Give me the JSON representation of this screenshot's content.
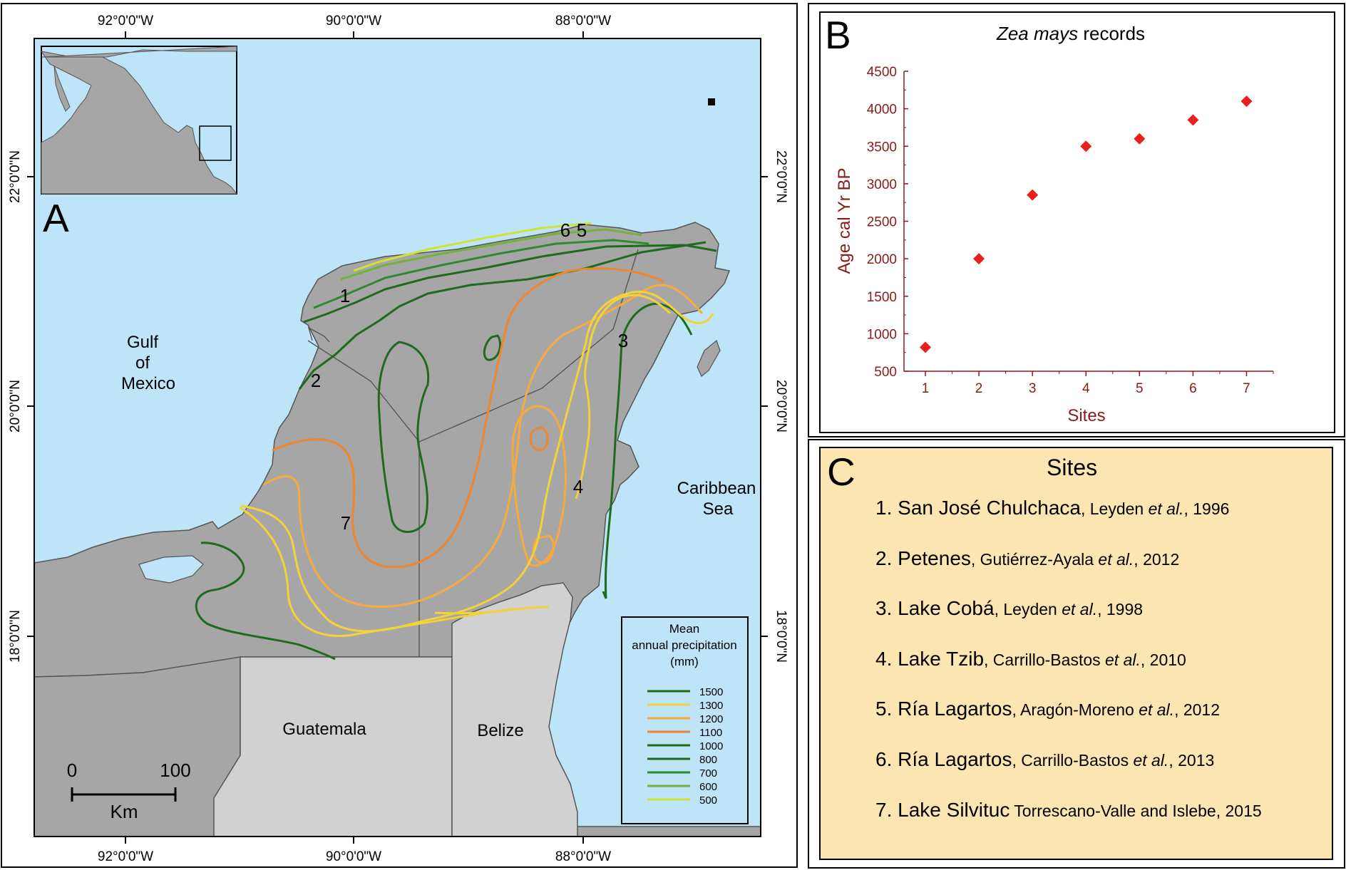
{
  "map_panel": {
    "panel_letter": "A",
    "lon_ticks": [
      "92°0'0\"W",
      "90°0'0\"W",
      "88°0'0\"W"
    ],
    "lat_ticks": [
      "22°0'0\"N",
      "20°0'0\"N",
      "18°0'0\"N"
    ],
    "water_labels": {
      "gulf": [
        "Gulf",
        "of",
        "Mexico"
      ],
      "caribbean": [
        "Caribbean",
        "Sea"
      ]
    },
    "country_labels": {
      "guatemala": "Guatemala",
      "belize": "Belize"
    },
    "site_numbers": [
      "1",
      "2",
      "3",
      "4",
      "6",
      "5",
      "7"
    ],
    "scale_bar": {
      "start": "0",
      "end": "100",
      "unit": "Km"
    },
    "legend": {
      "title_lines": [
        "Mean",
        "annual precipitation",
        "(mm)"
      ],
      "items": [
        {
          "label": "1500",
          "color": "#1e6b1e"
        },
        {
          "label": "1300",
          "color": "#f2d23a"
        },
        {
          "label": "1200",
          "color": "#f6a93c"
        },
        {
          "label": "1100",
          "color": "#f0862d"
        },
        {
          "label": "1000",
          "color": "#1e6b1e"
        },
        {
          "label": "800",
          "color": "#1e6b1e"
        },
        {
          "label": "700",
          "color": "#2f8a2f"
        },
        {
          "label": "600",
          "color": "#74b13f"
        },
        {
          "label": "500",
          "color": "#cfe23a"
        }
      ]
    },
    "colors": {
      "water": "#bde4f7",
      "land_mexico": "#a6a6a6",
      "land_other": "#d1d1d1",
      "borders": "#555555"
    }
  },
  "chart_panel": {
    "panel_letter": "B",
    "title_italic": "Zea mays",
    "title_rest": " records",
    "colors": {
      "axis": "#8b1a1a",
      "point": "#e8201c"
    }
  },
  "chart_data": {
    "type": "scatter",
    "title": "Zea mays records",
    "xlabel": "Sites",
    "ylabel": "Age cal Yr BP",
    "x": [
      1,
      2,
      3,
      4,
      5,
      6,
      7
    ],
    "y": [
      820,
      2000,
      2850,
      3500,
      3600,
      3850,
      4100
    ],
    "xticks": [
      "1",
      "2",
      "3",
      "4",
      "5",
      "6",
      "7"
    ],
    "yticks": [
      "500",
      "1000",
      "1500",
      "2000",
      "2500",
      "3000",
      "3500",
      "4000",
      "4500"
    ],
    "xlim": [
      0.6,
      7.5
    ],
    "ylim": [
      500,
      4500
    ],
    "marker": "diamond",
    "grid": false
  },
  "sites_panel": {
    "panel_letter": "C",
    "title": "Sites",
    "background": "#fbe6b2",
    "items": [
      {
        "num": "1.",
        "name": "San José Chulchaca",
        "pre": ", Leyden ",
        "italic": "et al.",
        "post": ", 1996"
      },
      {
        "num": "2.",
        "name": "Petenes",
        "pre": ", Gutiérrez-Ayala ",
        "italic": "et al.",
        "post": ", 2012"
      },
      {
        "num": "3.",
        "name": "Lake Cobá",
        "pre": ", Leyden ",
        "italic": "et al.",
        "post": ", 1998"
      },
      {
        "num": "4.",
        "name": "Lake Tzib",
        "pre": ", Carrillo-Bastos ",
        "italic": "et al.",
        "post": ", 2010"
      },
      {
        "num": "5.",
        "name": "Ría Lagartos",
        "pre": ", Aragón-Moreno ",
        "italic": "et al.",
        "post": ", 2012"
      },
      {
        "num": "6.",
        "name": "Ría Lagartos",
        "pre": ", Carrillo-Bastos ",
        "italic": "et al.",
        "post": ", 2013"
      },
      {
        "num": "7.",
        "name": "Lake Silvituc",
        "pre": " Torrescano-Valle and Islebe, 2015",
        "italic": "",
        "post": ""
      }
    ]
  }
}
